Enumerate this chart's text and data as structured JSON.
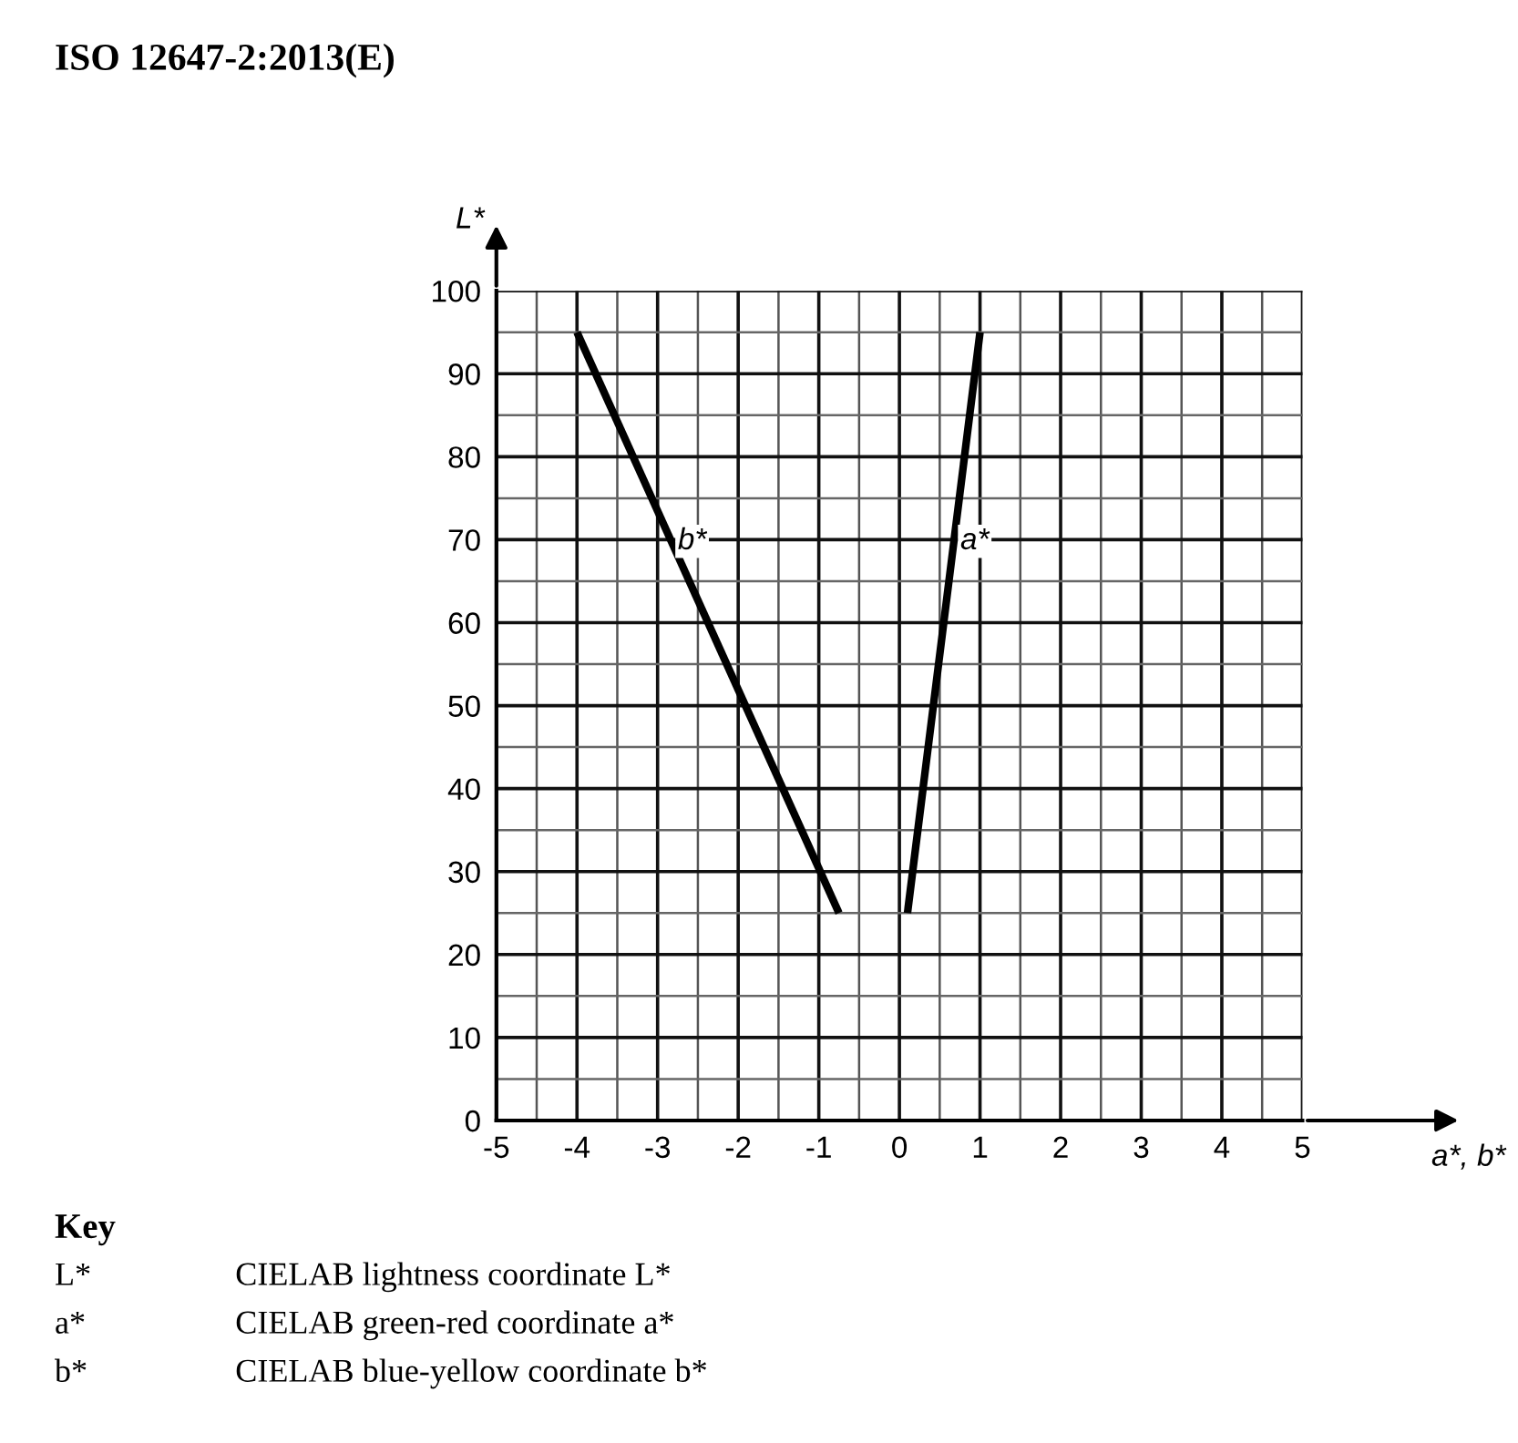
{
  "chart_data": {
    "type": "line",
    "title": "ISO 12647-2:2013(E)",
    "xlabel": "a*, b*",
    "ylabel": "L*",
    "series": [
      {
        "name": "b*",
        "color": "#000000",
        "x": [
          -4,
          -0.75
        ],
        "values": [
          95,
          25
        ]
      },
      {
        "name": "a*",
        "color": "#000000",
        "x": [
          0.1,
          1
        ],
        "values": [
          25,
          95
        ]
      }
    ],
    "xlim": [
      -5,
      5
    ],
    "ylim": [
      0,
      100
    ],
    "xticks": [
      -5,
      -4,
      -3,
      -2,
      -1,
      0,
      1,
      2,
      3,
      4,
      5
    ],
    "yticks": [
      0,
      10,
      20,
      30,
      40,
      50,
      60,
      70,
      80,
      90,
      100
    ],
    "grid": true,
    "line_style": "solid",
    "annotations": [
      "Key",
      "L*",
      "CIELAB lightness coordinate L*",
      "a*",
      "CIELAB green-red coordinate a*",
      "b*",
      "CIELAB blue-yellow coordinate b*"
    ]
  }
}
